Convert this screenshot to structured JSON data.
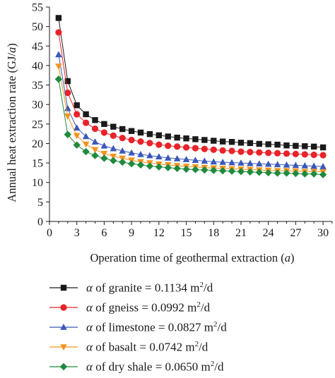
{
  "chart_data": {
    "type": "line",
    "xlabel": "Operation time of geothermal extraction (a)",
    "ylabel": "Annual heat extraction rate (GJ/a)",
    "xlim": [
      0,
      31
    ],
    "ylim": [
      0,
      55
    ],
    "xticks": [
      0,
      3,
      6,
      9,
      12,
      15,
      18,
      21,
      24,
      27,
      30
    ],
    "yticks": [
      0,
      5,
      10,
      15,
      20,
      25,
      30,
      35,
      40,
      45,
      50,
      55
    ],
    "grid": false,
    "legend_position": "below",
    "x": [
      1,
      2,
      3,
      4,
      5,
      6,
      7,
      8,
      9,
      10,
      11,
      12,
      13,
      14,
      15,
      16,
      17,
      18,
      19,
      20,
      21,
      22,
      23,
      24,
      25,
      26,
      27,
      28,
      29,
      30
    ],
    "series": [
      {
        "name": "α of granite = 0.1134 m2/d",
        "color": "#1a1a1a",
        "marker": "square",
        "values": [
          52.2,
          36.0,
          29.8,
          27.5,
          26.0,
          25.0,
          24.3,
          23.7,
          23.2,
          22.8,
          22.4,
          22.1,
          21.8,
          21.5,
          21.3,
          21.1,
          20.9,
          20.7,
          20.5,
          20.4,
          20.2,
          20.1,
          19.9,
          19.8,
          19.7,
          19.5,
          19.4,
          19.3,
          19.2,
          19.0
        ]
      },
      {
        "name": "α of gneiss = 0.0992 m2/d",
        "color": "#e8232a",
        "marker": "circle",
        "values": [
          48.5,
          33.0,
          27.5,
          25.3,
          23.8,
          22.8,
          22.0,
          21.4,
          20.9,
          20.5,
          20.1,
          19.7,
          19.4,
          19.2,
          19.0,
          18.8,
          18.6,
          18.4,
          18.2,
          18.1,
          17.9,
          17.8,
          17.7,
          17.6,
          17.5,
          17.4,
          17.3,
          17.2,
          17.1,
          17.0
        ]
      },
      {
        "name": "α of limestone = 0.0827 m2/d",
        "color": "#3a58b8",
        "marker": "triangle-up",
        "values": [
          42.8,
          29.0,
          24.0,
          21.8,
          20.4,
          19.4,
          18.7,
          18.1,
          17.6,
          17.2,
          16.9,
          16.6,
          16.3,
          16.1,
          15.9,
          15.7,
          15.5,
          15.3,
          15.2,
          15.1,
          15.0,
          14.9,
          14.8,
          14.7,
          14.6,
          14.5,
          14.4,
          14.3,
          14.2,
          14.1
        ]
      },
      {
        "name": "α of basalt = 0.0742 m2/d",
        "color": "#f5931e",
        "marker": "triangle-down",
        "values": [
          39.8,
          27.0,
          22.0,
          19.8,
          18.4,
          17.4,
          16.7,
          16.2,
          15.7,
          15.3,
          15.0,
          14.7,
          14.5,
          14.3,
          14.1,
          14.0,
          13.8,
          13.7,
          13.6,
          13.5,
          13.4,
          13.3,
          13.2,
          13.1,
          13.0,
          13.0,
          12.9,
          12.8,
          12.8,
          12.7
        ]
      },
      {
        "name": "α of dry shale = 0.0650 m2/d",
        "color": "#1f8a3e",
        "marker": "diamond",
        "values": [
          36.5,
          22.3,
          19.6,
          17.9,
          16.9,
          16.2,
          15.6,
          15.2,
          14.8,
          14.5,
          14.2,
          14.0,
          13.8,
          13.6,
          13.4,
          13.3,
          13.2,
          13.1,
          13.0,
          12.9,
          12.8,
          12.7,
          12.6,
          12.5,
          12.4,
          12.4,
          12.3,
          12.2,
          12.2,
          12.0
        ]
      }
    ]
  },
  "legend": [
    {
      "symbol": "α",
      "text": " of granite = 0.1134 m",
      "sup": "2",
      "unit": "/d"
    },
    {
      "symbol": "α",
      "text": " of gneiss = 0.0992 m",
      "sup": "2",
      "unit": "/d"
    },
    {
      "symbol": "α",
      "text": " of limestone = 0.0827 m",
      "sup": "2",
      "unit": "/d"
    },
    {
      "symbol": "α",
      "text": " of basalt = 0.0742 m",
      "sup": "2",
      "unit": "/d"
    },
    {
      "symbol": "α",
      "text": " of dry shale = 0.0650 m",
      "sup": "2",
      "unit": "/d"
    }
  ],
  "axis_titles": {
    "y_main": "Annual heat extraction rate (GJ/",
    "y_unit": "a",
    "y_close": ")",
    "x_main": "Operation time of geothermal extraction (",
    "x_unit": "a",
    "x_close": ")"
  }
}
